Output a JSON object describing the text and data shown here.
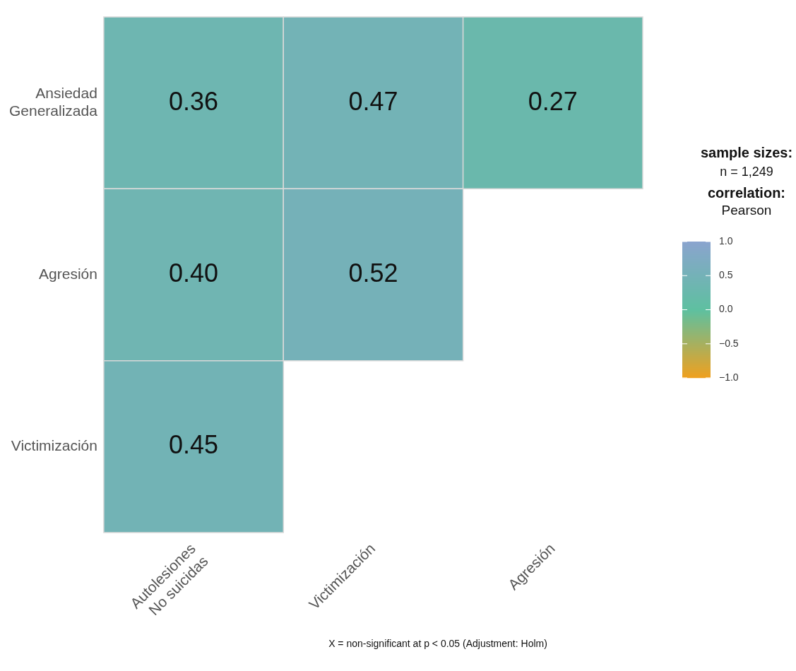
{
  "chart_data": {
    "type": "heatmap",
    "categories": [
      "Autolesiones\nNo suicidas",
      "Victimización",
      "Agresión"
    ],
    "y_categories": [
      "Ansiedad\nGeneralizada",
      "Agresión",
      "Victimización"
    ],
    "cells": [
      [
        0.36,
        0.47,
        0.27
      ],
      [
        0.4,
        0.52,
        null
      ],
      [
        0.45,
        null,
        null
      ]
    ],
    "cell_labels": [
      [
        "0.36",
        "0.47",
        "0.27"
      ],
      [
        "0.40",
        "0.52",
        null
      ],
      [
        "0.45",
        null,
        null
      ]
    ],
    "clabel": "correlation:\nPearson",
    "clim": [
      -1,
      1
    ],
    "cticks": [
      {
        "value": 1,
        "label": "1.0"
      },
      {
        "value": 0.5,
        "label": "0.5"
      },
      {
        "value": 0,
        "label": "0.0"
      },
      {
        "value": -0.5,
        "label": "−0.5"
      },
      {
        "value": -1,
        "label": "−1.0"
      }
    ],
    "annotations": [
      "sample sizes:",
      "n = 1,249",
      "X = non-significant at p < 0.05 (Adjustment: Holm)"
    ]
  }
}
